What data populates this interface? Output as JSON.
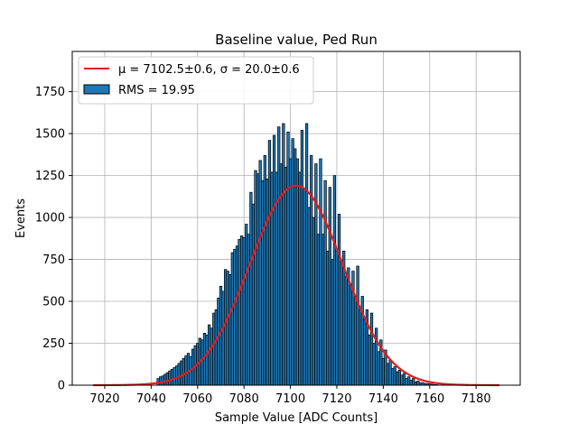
{
  "chart_data": {
    "type": "bar",
    "title": "Baseline value, Ped Run",
    "xlabel": "Sample Value [ADC Counts]",
    "ylabel": "Events",
    "xlim": [
      7006,
      7199
    ],
    "ylim": [
      0,
      1990
    ],
    "xticks": [
      7020,
      7040,
      7060,
      7080,
      7100,
      7120,
      7140,
      7160,
      7180
    ],
    "yticks": [
      0,
      250,
      500,
      750,
      1000,
      1250,
      1500,
      1750
    ],
    "grid": true,
    "legend_placement": "top-left",
    "series": [
      {
        "name": "RMS = 19.95",
        "kind": "histogram",
        "color": "#1f77b4",
        "edge_color": "#000000",
        "bin_width": 1,
        "x": [
          7043,
          7044,
          7045,
          7046,
          7047,
          7048,
          7049,
          7050,
          7051,
          7052,
          7053,
          7054,
          7055,
          7056,
          7057,
          7058,
          7059,
          7060,
          7061,
          7062,
          7063,
          7064,
          7065,
          7066,
          7067,
          7068,
          7069,
          7070,
          7071,
          7072,
          7073,
          7074,
          7075,
          7076,
          7077,
          7078,
          7079,
          7080,
          7081,
          7082,
          7083,
          7084,
          7085,
          7086,
          7087,
          7088,
          7089,
          7090,
          7091,
          7092,
          7093,
          7094,
          7095,
          7096,
          7097,
          7098,
          7099,
          7100,
          7101,
          7102,
          7103,
          7104,
          7105,
          7106,
          7107,
          7108,
          7109,
          7110,
          7111,
          7112,
          7113,
          7114,
          7115,
          7116,
          7117,
          7118,
          7119,
          7120,
          7121,
          7122,
          7123,
          7124,
          7125,
          7126,
          7127,
          7128,
          7129,
          7130,
          7131,
          7132,
          7133,
          7134,
          7135,
          7136,
          7137,
          7138,
          7139,
          7140,
          7141,
          7142,
          7143,
          7144,
          7145,
          7146,
          7147,
          7148,
          7149,
          7150,
          7151,
          7152,
          7153,
          7154,
          7155,
          7156,
          7157,
          7158,
          7159,
          7160,
          7161,
          7162,
          7163
        ],
        "values": [
          40,
          50,
          55,
          65,
          75,
          85,
          95,
          105,
          115,
          130,
          145,
          160,
          175,
          190,
          170,
          215,
          235,
          250,
          280,
          270,
          310,
          300,
          360,
          340,
          430,
          450,
          520,
          590,
          560,
          690,
          680,
          660,
          790,
          810,
          830,
          870,
          890,
          880,
          960,
          900,
          1150,
          1080,
          1280,
          1260,
          1340,
          1220,
          1370,
          1230,
          1460,
          1270,
          1490,
          1270,
          1540,
          1320,
          1560,
          1300,
          1510,
          1350,
          1470,
          1410,
          1350,
          1270,
          1520,
          1170,
          1560,
          1060,
          1370,
          1000,
          1320,
          900,
          1350,
          900,
          1220,
          800,
          1180,
          750,
          1250,
          800,
          1020,
          740,
          800,
          650,
          700,
          600,
          680,
          530,
          710,
          450,
          530,
          390,
          450,
          300,
          430,
          250,
          340,
          200,
          270,
          160,
          210,
          130,
          150,
          100,
          110,
          80,
          90,
          60,
          70,
          40,
          50,
          30,
          40,
          20,
          25,
          15,
          15,
          10,
          10,
          8,
          6,
          4,
          3
        ]
      },
      {
        "name": "$\\mu = 7102.5\\pm0.6$, $\\sigma = 20.0\\pm0.6$",
        "legend_text": "μ = 7102.5±0.6, σ = 20.0±0.6",
        "kind": "gaussian_fit",
        "color": "#e41a1c",
        "mu": 7102.5,
        "sigma": 20.0,
        "amplitude": 1190,
        "x_range": [
          7015,
          7190
        ]
      }
    ],
    "legend": [
      "μ = 7102.5±0.6, σ = 20.0±0.6",
      "RMS = 19.95"
    ]
  }
}
